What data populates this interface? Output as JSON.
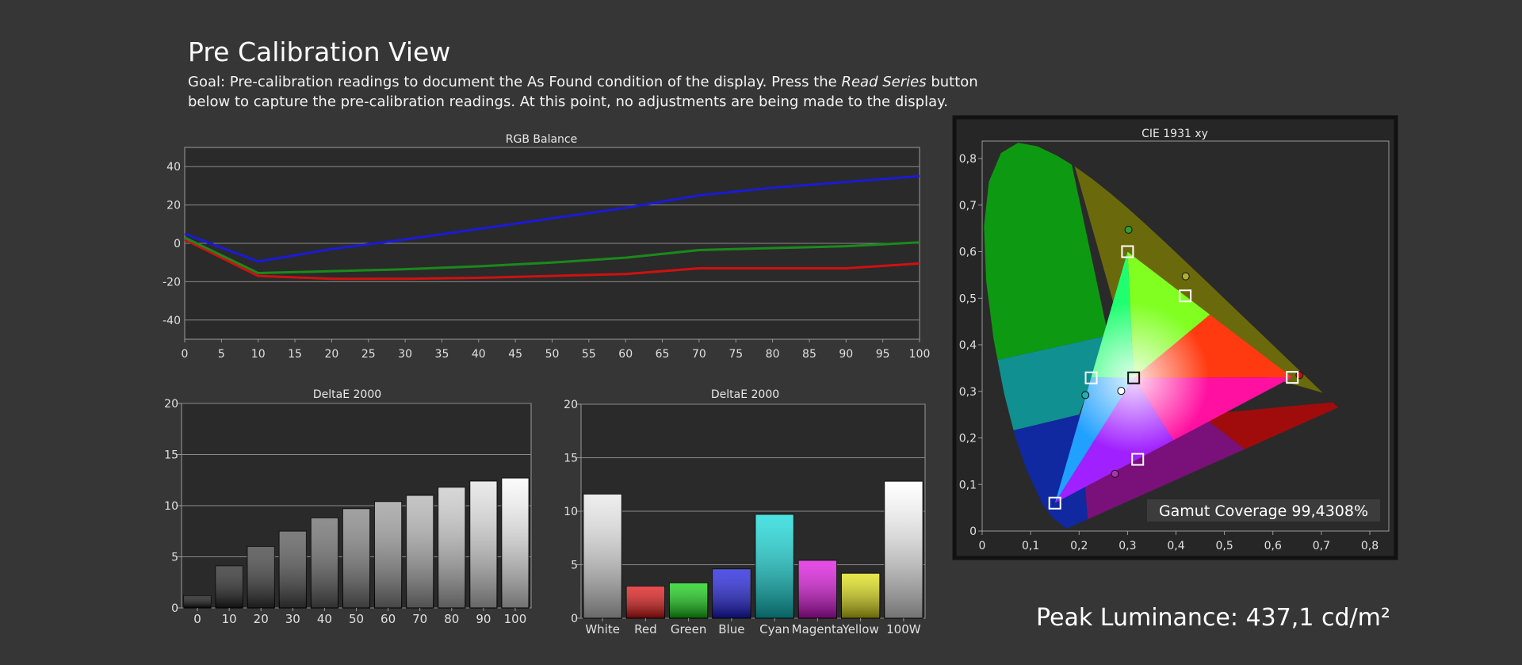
{
  "header": {
    "title": "Pre Calibration View",
    "goal_prefix": "Goal: Pre-calibration readings to document the As Found condition of the display. Press the ",
    "goal_emphasis": "Read Series",
    "goal_suffix": " button below to capture the pre-calibration readings. At this point, no adjustments are being made to the display."
  },
  "peak_luminance": "Peak Luminance: 437,1 cd/m²",
  "gamut_coverage": "Gamut Coverage 99,4308%",
  "colors": {
    "background": "#363636",
    "plot_bg": "#2a2a2a",
    "red": "#d01010",
    "green": "#1a8a1a",
    "blue": "#1a1ad8"
  },
  "chart_data": [
    {
      "type": "line",
      "title": "RGB Balance",
      "x": [
        0,
        10,
        20,
        30,
        40,
        50,
        60,
        70,
        80,
        90,
        100
      ],
      "xticks": [
        "0",
        "5",
        "10",
        "15",
        "20",
        "25",
        "30",
        "35",
        "40",
        "45",
        "50",
        "55",
        "60",
        "65",
        "70",
        "75",
        "80",
        "85",
        "90",
        "95",
        "100"
      ],
      "yticks": [
        "40",
        "20",
        "0",
        "-20",
        "-40"
      ],
      "xlim": [
        0,
        100
      ],
      "ylim": [
        -50,
        50
      ],
      "grid": true,
      "series": [
        {
          "color": "#d01010",
          "values": [
            2,
            -17,
            -18.5,
            -18.5,
            -18,
            -17,
            -16,
            -13,
            -13,
            -13,
            -10.5
          ]
        },
        {
          "color": "#1a8a1a",
          "values": [
            3,
            -15.5,
            -14.5,
            -13.5,
            -12,
            -10,
            -7.5,
            -3.5,
            -2.5,
            -1.5,
            0.5
          ]
        },
        {
          "color": "#1a1ad8",
          "values": [
            5,
            -9.5,
            -3,
            2,
            7.5,
            13,
            18.5,
            25,
            29,
            32,
            35
          ]
        }
      ]
    },
    {
      "type": "bar",
      "title": "DeltaE 2000",
      "categories": [
        "0",
        "10",
        "20",
        "30",
        "40",
        "50",
        "60",
        "70",
        "80",
        "90",
        "100"
      ],
      "values": [
        1.2,
        4.1,
        6.0,
        7.5,
        8.8,
        9.7,
        10.4,
        11.0,
        11.8,
        12.4,
        12.7
      ],
      "yticks": [
        "20",
        "15",
        "10",
        "5",
        "0"
      ],
      "ylim": [
        0,
        20
      ],
      "grid": true
    },
    {
      "type": "bar",
      "title": "DeltaE 2000",
      "categories": [
        "White",
        "Red",
        "Green",
        "Blue",
        "Cyan",
        "Magenta",
        "Yellow",
        "100W"
      ],
      "values": [
        11.6,
        3.0,
        3.3,
        4.6,
        9.7,
        5.4,
        4.2,
        12.8
      ],
      "bar_colors": [
        "#e8e8e8",
        "#e01010",
        "#10d010",
        "#1a1ae0",
        "#10d8d8",
        "#e010e0",
        "#e0e010",
        "#ffffff"
      ],
      "yticks": [
        "20",
        "15",
        "10",
        "5",
        "0"
      ],
      "ylim": [
        0,
        20
      ],
      "grid": true
    },
    {
      "type": "scatter",
      "title": "CIE 1931 xy",
      "xticks": [
        "0",
        "0,1",
        "0,2",
        "0,3",
        "0,4",
        "0,5",
        "0,6",
        "0,7",
        "0,8"
      ],
      "yticks": [
        "0,8",
        "0,7",
        "0,6",
        "0,5",
        "0,4",
        "0,3",
        "0,2",
        "0,1",
        "0"
      ],
      "xlim": [
        0,
        0.84
      ],
      "ylim": [
        0,
        0.84
      ],
      "gamut_triangle": [
        [
          0.64,
          0.33
        ],
        [
          0.3,
          0.6
        ],
        [
          0.15,
          0.06
        ]
      ],
      "targets": [
        {
          "x": 0.64,
          "y": 0.33
        },
        {
          "x": 0.3,
          "y": 0.6
        },
        {
          "x": 0.15,
          "y": 0.06
        },
        {
          "x": 0.225,
          "y": 0.329
        },
        {
          "x": 0.321,
          "y": 0.154
        },
        {
          "x": 0.419,
          "y": 0.505
        },
        {
          "x": 0.3127,
          "y": 0.329
        }
      ],
      "measured": [
        {
          "x": 0.655,
          "y": 0.335,
          "color": "#c01010"
        },
        {
          "x": 0.302,
          "y": 0.647,
          "color": "#30a030"
        },
        {
          "x": 0.213,
          "y": 0.292,
          "color": "#20b0b0"
        },
        {
          "x": 0.274,
          "y": 0.123,
          "color": "#b030b0"
        },
        {
          "x": 0.42,
          "y": 0.547,
          "color": "#b0b030"
        },
        {
          "x": 0.287,
          "y": 0.301,
          "color": "#ffffff"
        }
      ]
    }
  ]
}
